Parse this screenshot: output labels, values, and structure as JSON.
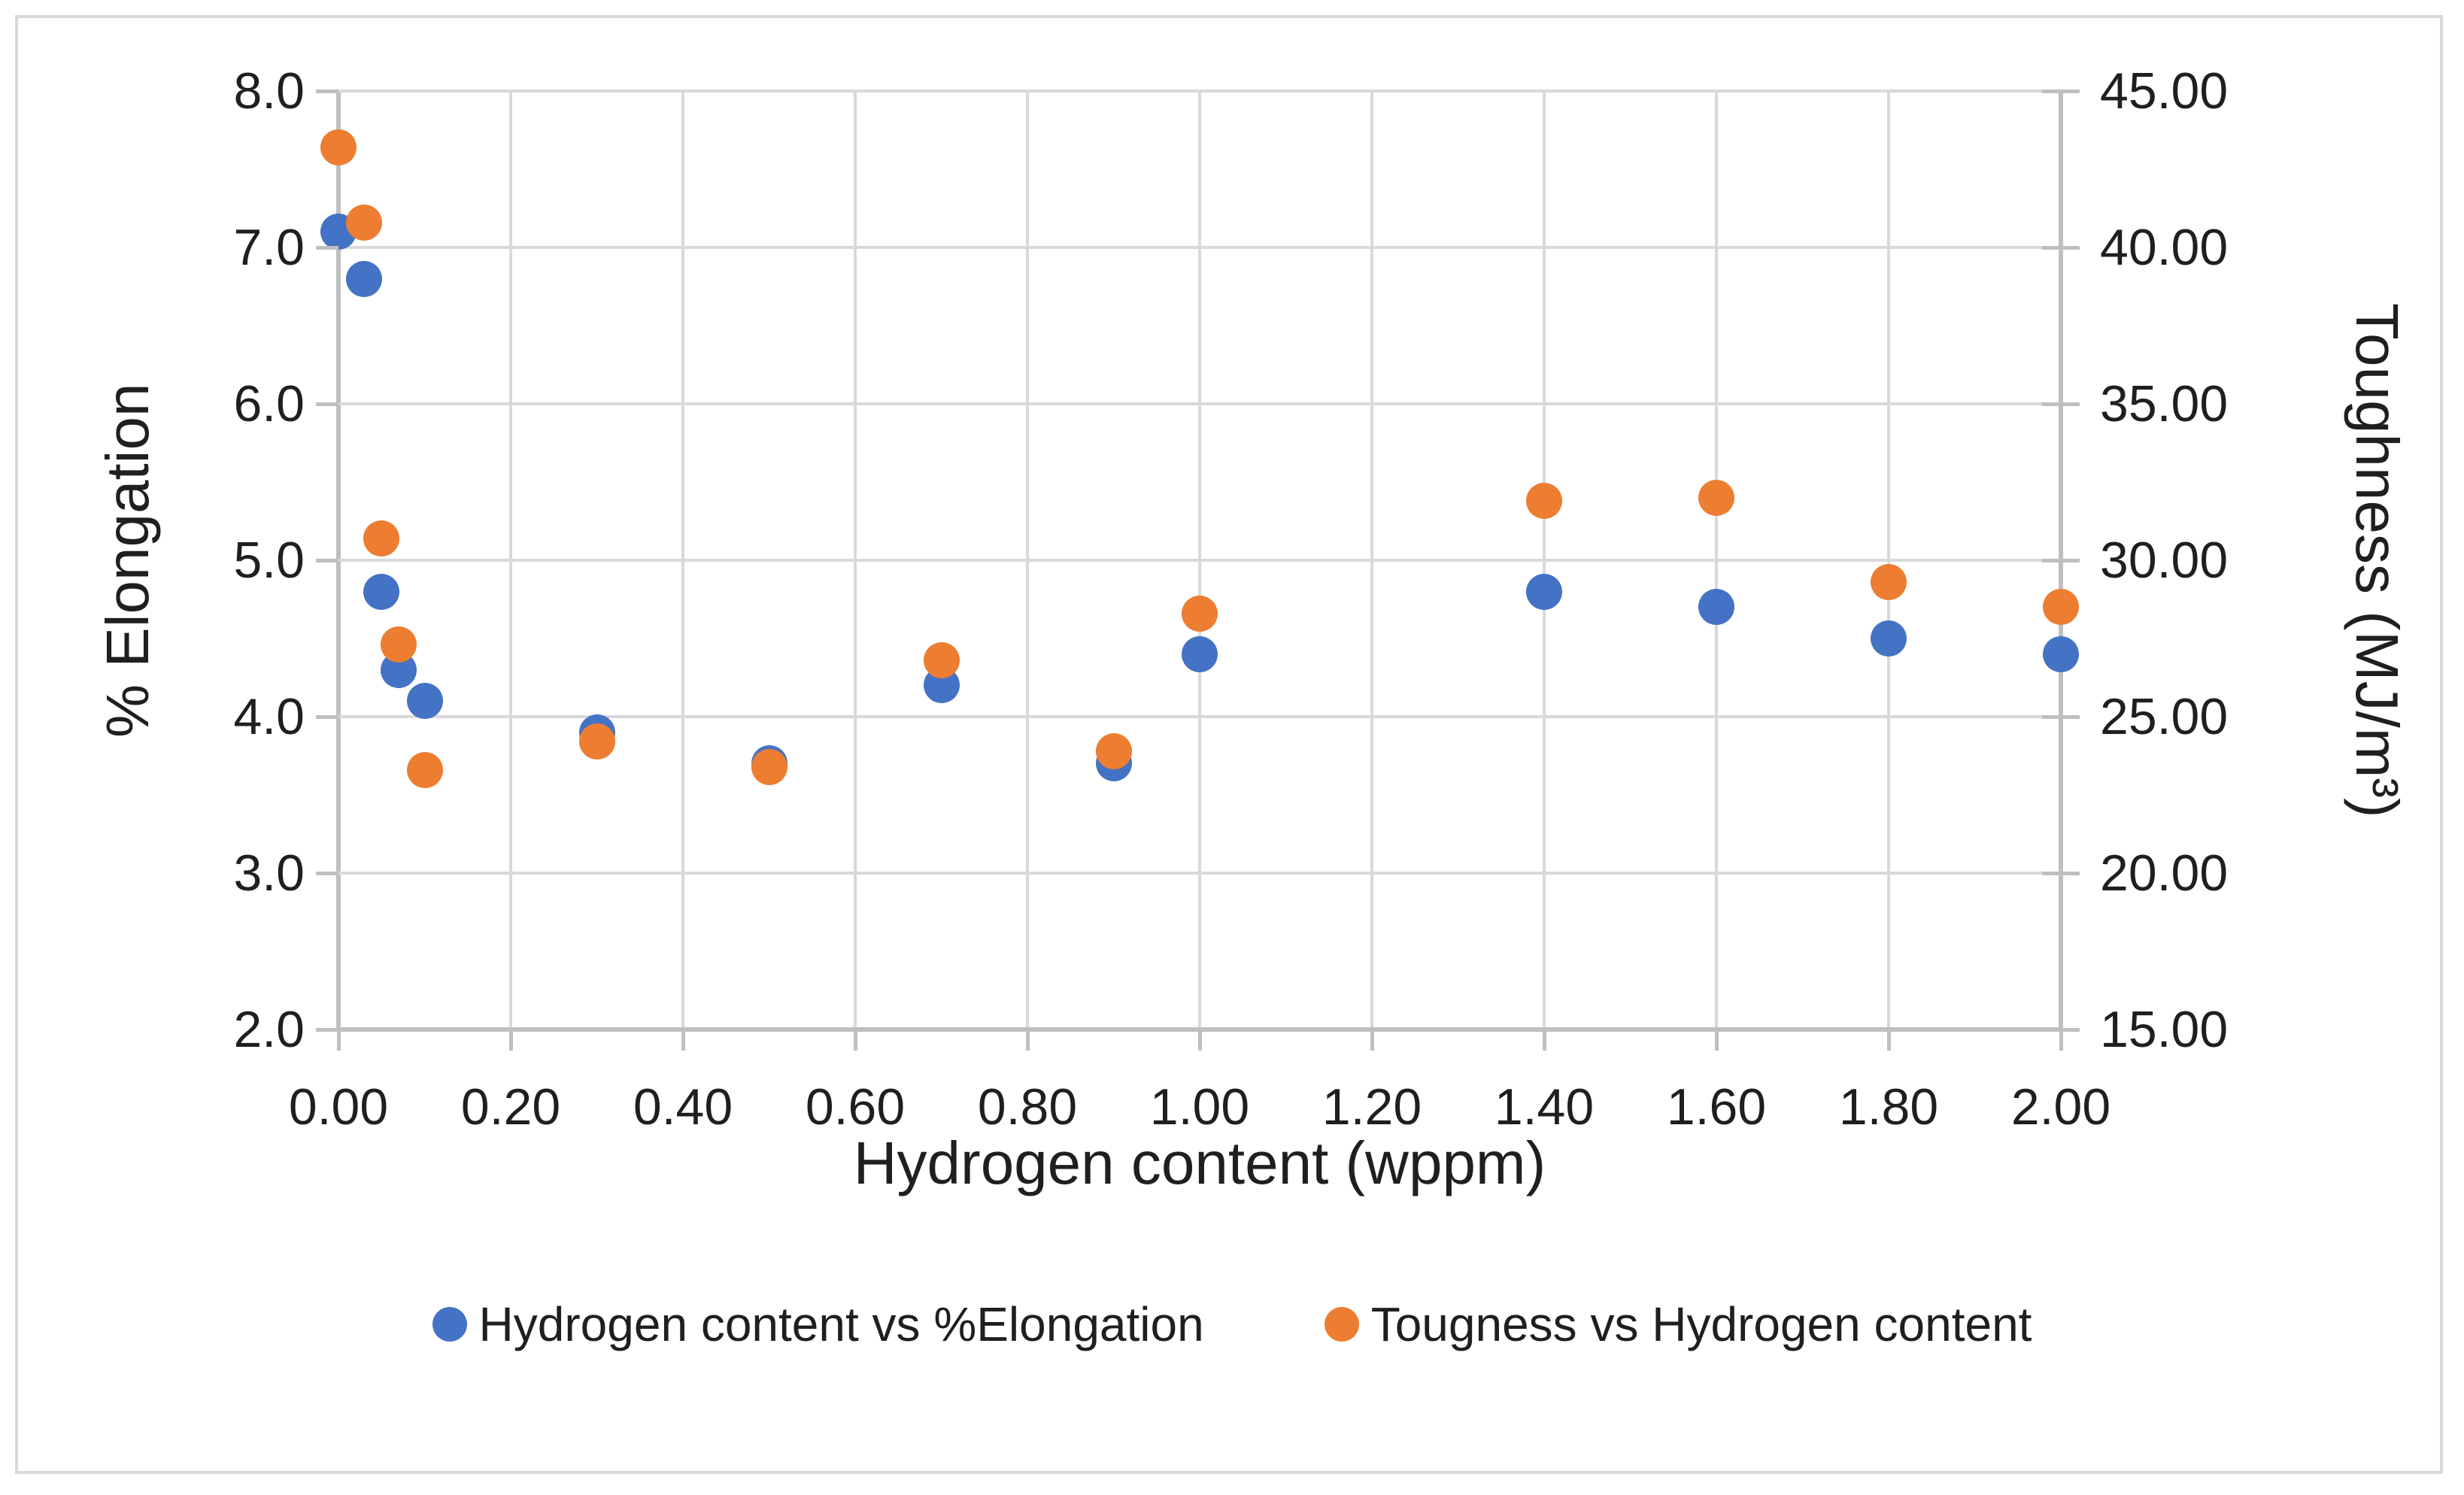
{
  "chart_data": {
    "type": "scatter",
    "title": "",
    "grid": true,
    "legend_position": "bottom",
    "x_axis": {
      "label": "Hydrogen content (wppm)",
      "min": 0.0,
      "max": 2.0,
      "step": 0.2,
      "tick_labels": [
        "0.00",
        "0.20",
        "0.40",
        "0.60",
        "0.80",
        "1.00",
        "1.20",
        "1.40",
        "1.60",
        "1.80",
        "2.00"
      ]
    },
    "y_axis_left": {
      "label": "% Elongation",
      "min": 2.0,
      "max": 8.0,
      "step": 1.0,
      "tick_labels": [
        "2.0",
        "3.0",
        "4.0",
        "5.0",
        "6.0",
        "7.0",
        "8.0"
      ]
    },
    "y_axis_right": {
      "label": "Toughness (MJ/m³)",
      "min": 15.0,
      "max": 45.0,
      "step": 5.0,
      "tick_labels": [
        "15.00",
        "20.00",
        "25.00",
        "30.00",
        "35.00",
        "40.00",
        "45.00"
      ]
    },
    "series": [
      {
        "name": "Hydrogen content vs %Elongation",
        "axis": "left",
        "color": "#4472C4",
        "points": [
          [
            0.0,
            7.1
          ],
          [
            0.03,
            6.8
          ],
          [
            0.05,
            4.8
          ],
          [
            0.07,
            4.3
          ],
          [
            0.1,
            4.1
          ],
          [
            0.3,
            3.9
          ],
          [
            0.5,
            3.7
          ],
          [
            0.7,
            4.2
          ],
          [
            0.9,
            3.7
          ],
          [
            1.0,
            4.4
          ],
          [
            1.4,
            4.8
          ],
          [
            1.6,
            4.7
          ],
          [
            1.8,
            4.5
          ],
          [
            2.0,
            4.4
          ]
        ]
      },
      {
        "name": "Tougness vs Hydrogen content",
        "axis": "right",
        "color": "#ED7D31",
        "points": [
          [
            0.0,
            43.2
          ],
          [
            0.03,
            40.8
          ],
          [
            0.05,
            30.7
          ],
          [
            0.07,
            27.3
          ],
          [
            0.1,
            23.3
          ],
          [
            0.3,
            24.2
          ],
          [
            0.5,
            23.4
          ],
          [
            0.7,
            26.8
          ],
          [
            0.9,
            23.9
          ],
          [
            1.0,
            28.3
          ],
          [
            1.4,
            31.9
          ],
          [
            1.6,
            32.0
          ],
          [
            1.8,
            29.3
          ],
          [
            2.0,
            28.5
          ]
        ]
      }
    ]
  },
  "colors": {
    "background": "#FFFFFF",
    "frame_border": "#D9D9D9",
    "gridline": "#D9D9D9",
    "axis_line": "#BFBFBF",
    "text": "#1F1F1F",
    "series_blue": "#4472C4",
    "series_orange": "#ED7D31"
  }
}
